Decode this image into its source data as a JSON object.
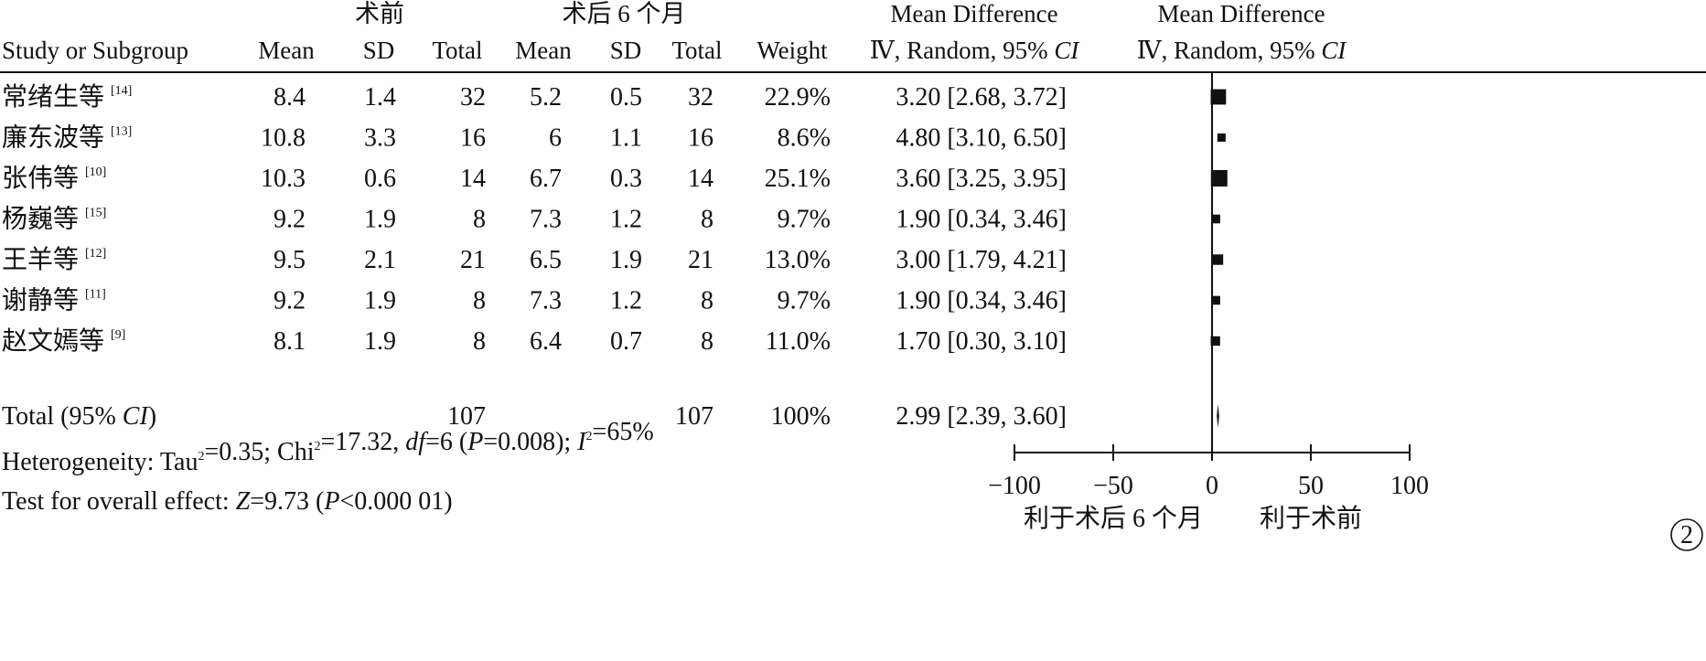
{
  "headers": {
    "group_pre": "术前",
    "group_post": "术后 6 个月",
    "md_col1": [
      "Mean Difference",
      "Ⅳ, Random, 95% CI"
    ],
    "md_col2": [
      "Mean Difference",
      "Ⅳ, Random, 95% CI"
    ],
    "study": "Study or Subgroup",
    "mean": "Mean",
    "sd": "SD",
    "total": "Total",
    "weight": "Weight"
  },
  "ci_italic": "CI",
  "total_row": {
    "label_prefix": "Total (95% ",
    "label_suffix": ")",
    "pre_total": "107",
    "post_total": "107",
    "weight": "100%",
    "md_text": "2.99 [2.39, 3.60]"
  },
  "heterogeneity": "Heterogeneity: Tau²=0.35; Chi²=17.32, df=6 (P=0.008); I²=65%",
  "overall_effect": "Test for overall effect: Z=9.73 (P<0.000 01)",
  "axis": {
    "ticks": [
      "−100",
      "−50",
      "0",
      "50",
      "100"
    ],
    "favours_left": "利于术后 6 个月",
    "favours_right": "利于术前"
  },
  "panel_label": "2",
  "chart_data": {
    "type": "forest",
    "title": "",
    "xlabel": "",
    "ylabel": "",
    "xlim": [
      -100,
      100
    ],
    "xticks": [
      -100,
      -50,
      0,
      50,
      100
    ],
    "effect_measure": "Mean Difference (IV, Random, 95% CI)",
    "studies": [
      {
        "name": "常绪生等",
        "ref": "[14]",
        "pre_mean": "8.4",
        "pre_sd": "1.4",
        "pre_total": "32",
        "post_mean": "5.2",
        "post_sd": "0.5",
        "post_total": "32",
        "weight": "22.9%",
        "weight_value": 22.9,
        "md": 3.2,
        "ci": [
          2.68,
          3.72
        ],
        "md_text": "3.20 [2.68, 3.72]"
      },
      {
        "name": "廉东波等",
        "ref": "[13]",
        "pre_mean": "10.8",
        "pre_sd": "3.3",
        "pre_total": "16",
        "post_mean": "6",
        "post_sd": "1.1",
        "post_total": "16",
        "weight": "8.6%",
        "weight_value": 8.6,
        "md": 4.8,
        "ci": [
          3.1,
          6.5
        ],
        "md_text": "4.80 [3.10, 6.50]"
      },
      {
        "name": "张伟等",
        "ref": "[10]",
        "pre_mean": "10.3",
        "pre_sd": "0.6",
        "pre_total": "14",
        "post_mean": "6.7",
        "post_sd": "0.3",
        "post_total": "14",
        "weight": "25.1%",
        "weight_value": 25.1,
        "md": 3.6,
        "ci": [
          3.25,
          3.95
        ],
        "md_text": "3.60 [3.25, 3.95]"
      },
      {
        "name": "杨巍等",
        "ref": "[15]",
        "pre_mean": "9.2",
        "pre_sd": "1.9",
        "pre_total": "8",
        "post_mean": "7.3",
        "post_sd": "1.2",
        "post_total": "8",
        "weight": "9.7%",
        "weight_value": 9.7,
        "md": 1.9,
        "ci": [
          0.34,
          3.46
        ],
        "md_text": "1.90 [0.34, 3.46]"
      },
      {
        "name": "王羊等",
        "ref": "[12]",
        "pre_mean": "9.5",
        "pre_sd": "2.1",
        "pre_total": "21",
        "post_mean": "6.5",
        "post_sd": "1.9",
        "post_total": "21",
        "weight": "13.0%",
        "weight_value": 13.0,
        "md": 3.0,
        "ci": [
          1.79,
          4.21
        ],
        "md_text": "3.00 [1.79, 4.21]"
      },
      {
        "name": "谢静等",
        "ref": "[11]",
        "pre_mean": "9.2",
        "pre_sd": "1.9",
        "pre_total": "8",
        "post_mean": "7.3",
        "post_sd": "1.2",
        "post_total": "8",
        "weight": "9.7%",
        "weight_value": 9.7,
        "md": 1.9,
        "ci": [
          0.34,
          3.46
        ],
        "md_text": "1.90 [0.34, 3.46]"
      },
      {
        "name": "赵文嫣等",
        "ref": "[9]",
        "pre_mean": "8.1",
        "pre_sd": "1.9",
        "pre_total": "8",
        "post_mean": "6.4",
        "post_sd": "0.7",
        "post_total": "8",
        "weight": "11.0%",
        "weight_value": 11.0,
        "md": 1.7,
        "ci": [
          0.3,
          3.1
        ],
        "md_text": "1.70 [0.30, 3.10]"
      }
    ],
    "pooled": {
      "md": 2.99,
      "ci": [
        2.39,
        3.6
      ]
    },
    "heterogeneity": {
      "tau2": 0.35,
      "chi2": 17.32,
      "df": 6,
      "p": 0.008,
      "i2": 65
    },
    "overall_effect": {
      "z": 9.73,
      "p": "<0.000 01"
    }
  }
}
